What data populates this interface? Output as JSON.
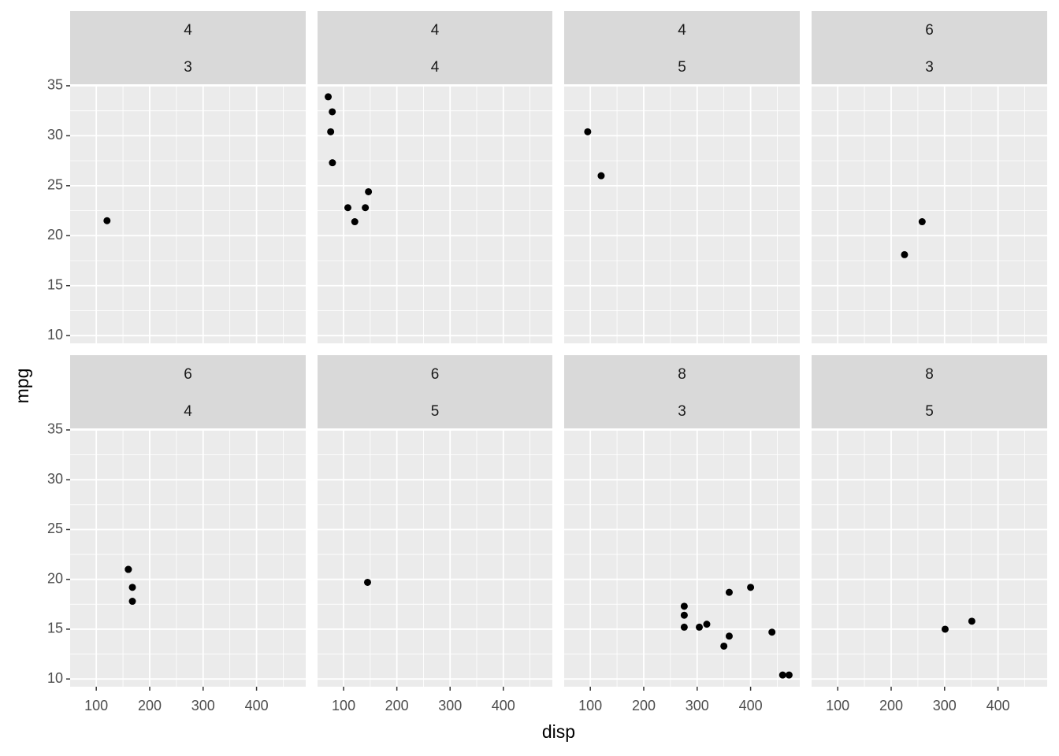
{
  "chart_data": {
    "type": "scatter",
    "x_label": "disp",
    "y_label": "mpg",
    "xlim": [
      51.05,
      492.05
    ],
    "ylim": [
      9.225,
      35.075
    ],
    "xticks": [
      100,
      200,
      300,
      400
    ],
    "yticks": [
      10,
      15,
      20,
      25,
      30,
      35
    ],
    "grid": true,
    "color": "#000000",
    "facets": [
      {
        "strips": [
          "4",
          "3"
        ],
        "x": [
          120.1
        ],
        "y": [
          21.5
        ]
      },
      {
        "strips": [
          "4",
          "4"
        ],
        "x": [
          108,
          146.7,
          140.8,
          78.7,
          75.7,
          71.1,
          79,
          121
        ],
        "y": [
          22.8,
          24.4,
          22.8,
          32.4,
          30.4,
          33.9,
          27.3,
          21.4
        ]
      },
      {
        "strips": [
          "4",
          "5"
        ],
        "x": [
          120.3,
          95.1
        ],
        "y": [
          26.0,
          30.4
        ]
      },
      {
        "strips": [
          "6",
          "3"
        ],
        "x": [
          258,
          225
        ],
        "y": [
          21.4,
          18.1
        ]
      },
      {
        "strips": [
          "6",
          "4"
        ],
        "x": [
          160,
          160,
          167.6,
          167.6
        ],
        "y": [
          21,
          21,
          19.2,
          17.8
        ]
      },
      {
        "strips": [
          "6",
          "5"
        ],
        "x": [
          145
        ],
        "y": [
          19.7
        ]
      },
      {
        "strips": [
          "8",
          "3"
        ],
        "x": [
          360,
          360,
          275.8,
          275.8,
          275.8,
          472,
          460,
          440,
          318,
          304,
          350,
          400
        ],
        "y": [
          18.7,
          14.3,
          16.4,
          17.3,
          15.2,
          10.4,
          10.4,
          14.7,
          15.5,
          15.2,
          13.3,
          19.2
        ]
      },
      {
        "strips": [
          "8",
          "5"
        ],
        "x": [
          351,
          301
        ],
        "y": [
          15.8,
          15.0
        ]
      }
    ]
  }
}
